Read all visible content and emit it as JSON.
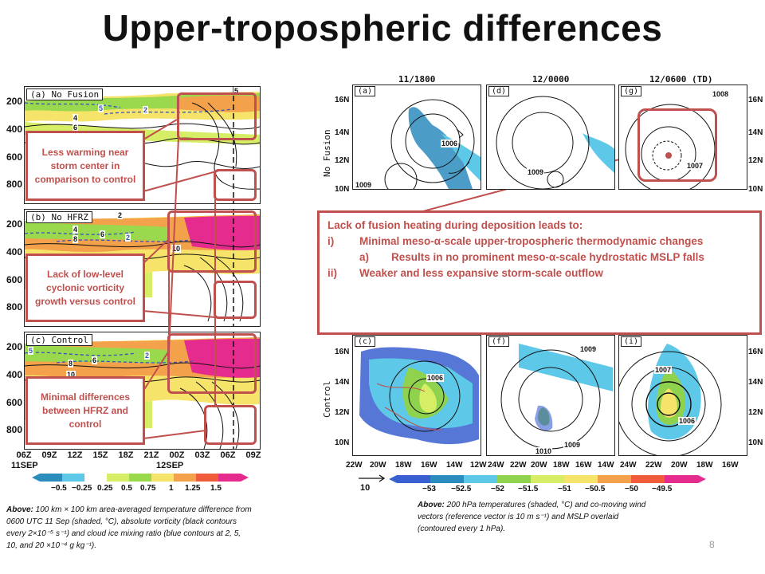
{
  "title": "Upper-tropospheric differences",
  "left": {
    "panels": [
      {
        "label": "(a) No Fusion"
      },
      {
        "label": "(b) No HFRZ"
      },
      {
        "label": "(c) Control"
      }
    ],
    "yticks": [
      "200",
      "400",
      "600",
      "800"
    ],
    "xticks": [
      "06Z",
      "09Z",
      "12Z",
      "15Z",
      "18Z",
      "21Z",
      "00Z",
      "03Z",
      "06Z",
      "09Z"
    ],
    "date_labels": [
      "11SEP",
      "12SEP"
    ],
    "contour_labels": {
      "a": [
        "5",
        "2",
        "4",
        "6",
        "5"
      ],
      "b": [
        "2",
        "4",
        "8",
        "6",
        "2",
        "10"
      ],
      "c": [
        "5",
        "2",
        "6",
        "8",
        "10"
      ]
    },
    "callouts": [
      "Less warming near storm center in comparison to control",
      "Lack of low-level cyclonic vorticity growth versus control",
      "Minimal differences between HFRZ and control"
    ],
    "colorbar": {
      "labels": [
        "−0.5",
        "−0.25",
        "0.25",
        "0.5",
        "0.75",
        "1",
        "1.25",
        "1.5"
      ],
      "colors": [
        "#2b8cbe",
        "#5ec8e8",
        "#ffffff",
        "#d6ee66",
        "#9ad84e",
        "#f5e36a",
        "#f4a14c",
        "#ef5b3b",
        "#e52c8e"
      ]
    },
    "caption": {
      "lead": "Above:",
      "text": " 100 km × 100 km area-averaged temperature difference from 0600 UTC 11 Sep (shaded, °C), absolute vorticity (black contours every 2×10⁻⁵ s⁻¹) and cloud ice mixing ratio (blue contours at 2, 5, 10, and 20 ×10⁻⁴ g kg⁻¹)."
    }
  },
  "right": {
    "col_titles": [
      "11/1800",
      "12/0000",
      "12/0600 (TD)"
    ],
    "row_labels": [
      "No Fusion",
      "Control"
    ],
    "panel_labels": [
      "(a)",
      "(d)",
      "(g)",
      "(c)",
      "(f)",
      "(i)"
    ],
    "lat_ticks": [
      "16N",
      "14N",
      "12N",
      "10N"
    ],
    "lon_ticks": [
      "22W",
      "20W",
      "18W",
      "16W",
      "14W",
      "12W",
      "24W",
      "22W",
      "20W",
      "18W",
      "16W",
      "14W",
      "24W",
      "22W",
      "20W",
      "18W",
      "16W"
    ],
    "pressure_labels": {
      "a": [
        "1006",
        "1009",
        "1008"
      ],
      "d": [
        "1009"
      ],
      "g": [
        "1008",
        "1007"
      ],
      "c": [
        "1006"
      ],
      "f": [
        "1009",
        "1009",
        "1010"
      ],
      "i": [
        "1007",
        "1006"
      ]
    },
    "colorbar": {
      "labels": [
        "−53",
        "−52.5",
        "−52",
        "−51.5",
        "−51",
        "−50.5",
        "−50",
        "−49.5"
      ],
      "colors": [
        "#3a5fd0",
        "#2b8cbe",
        "#5ec8e8",
        "#8fd24e",
        "#d6ee66",
        "#f5e36a",
        "#f4a14c",
        "#ef5b3b",
        "#e52c8e"
      ]
    },
    "ref_vector": "10",
    "box": {
      "intro": "Lack of fusion heating during deposition leads to:",
      "items": [
        {
          "n": "i)",
          "text": "Minimal meso-α-scale upper-tropospheric thermodynamic changes"
        },
        {
          "n": "a)",
          "text": "Results in no prominent meso-α-scale hydrostatic MSLP falls"
        },
        {
          "n": "ii)",
          "text": "Weaker and less expansive storm-scale outflow"
        }
      ]
    },
    "caption": {
      "lead": "Above:",
      "text": " 200 hPa temperatures (shaded, °C) and co-moving wind vectors (reference vector is 10 m s⁻¹) and MSLP overlaid (contoured every 1 hPa)."
    }
  },
  "page_number": "8",
  "colors": {
    "accent": "#c0504d"
  }
}
